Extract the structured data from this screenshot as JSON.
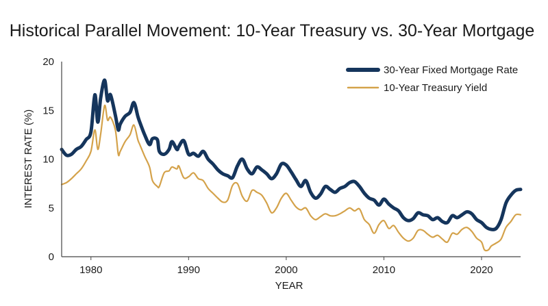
{
  "chart_data": {
    "type": "line",
    "title": "Historical Parallel Movement: 10-Year Treasury vs. 30-Year Mortgage",
    "xlabel": "YEAR",
    "ylabel": "INTEREST RATE (%)",
    "xlim": [
      1977,
      2024
    ],
    "ylim": [
      0,
      20
    ],
    "x_ticks": [
      1980,
      1990,
      2000,
      2010,
      2020
    ],
    "y_ticks": [
      0,
      5,
      10,
      15,
      20
    ],
    "grid": false,
    "legend_position": "top-right",
    "series": [
      {
        "name": "30-Year Fixed Mortgage Rate",
        "color": "#15355c",
        "points": [
          [
            1977,
            11.0
          ],
          [
            1977.5,
            10.4
          ],
          [
            1978,
            10.5
          ],
          [
            1978.5,
            11.0
          ],
          [
            1979,
            11.3
          ],
          [
            1979.5,
            12.0
          ],
          [
            1980,
            12.8
          ],
          [
            1980.4,
            16.6
          ],
          [
            1980.7,
            13.8
          ],
          [
            1981,
            16.3
          ],
          [
            1981.4,
            18.1
          ],
          [
            1981.7,
            16.0
          ],
          [
            1982,
            16.6
          ],
          [
            1982.5,
            14.5
          ],
          [
            1982.8,
            13.0
          ],
          [
            1983,
            13.6
          ],
          [
            1983.5,
            14.4
          ],
          [
            1984,
            14.8
          ],
          [
            1984.4,
            15.8
          ],
          [
            1984.8,
            14.4
          ],
          [
            1985,
            13.8
          ],
          [
            1985.5,
            12.5
          ],
          [
            1986,
            11.5
          ],
          [
            1986.3,
            12.1
          ],
          [
            1986.8,
            12.0
          ],
          [
            1987,
            10.8
          ],
          [
            1987.5,
            10.5
          ],
          [
            1988,
            11.0
          ],
          [
            1988.3,
            11.8
          ],
          [
            1988.8,
            11.0
          ],
          [
            1989,
            11.3
          ],
          [
            1989.5,
            11.9
          ],
          [
            1990,
            10.5
          ],
          [
            1990.5,
            10.6
          ],
          [
            1991,
            10.3
          ],
          [
            1991.5,
            10.8
          ],
          [
            1992,
            10.0
          ],
          [
            1992.5,
            9.5
          ],
          [
            1993,
            8.9
          ],
          [
            1993.5,
            8.5
          ],
          [
            1994,
            8.3
          ],
          [
            1994.5,
            8.1
          ],
          [
            1995,
            9.3
          ],
          [
            1995.5,
            10.0
          ],
          [
            1996,
            9.0
          ],
          [
            1996.5,
            8.5
          ],
          [
            1997,
            9.2
          ],
          [
            1997.5,
            8.9
          ],
          [
            1998,
            8.5
          ],
          [
            1998.5,
            8.0
          ],
          [
            1999,
            8.5
          ],
          [
            1999.5,
            9.5
          ],
          [
            2000,
            9.4
          ],
          [
            2000.5,
            8.7
          ],
          [
            2001,
            7.9
          ],
          [
            2001.5,
            7.2
          ],
          [
            2002,
            7.8
          ],
          [
            2002.5,
            6.6
          ],
          [
            2003,
            6.0
          ],
          [
            2003.5,
            6.4
          ],
          [
            2004,
            7.2
          ],
          [
            2004.5,
            6.9
          ],
          [
            2005,
            6.6
          ],
          [
            2005.5,
            7.0
          ],
          [
            2006,
            7.2
          ],
          [
            2006.5,
            7.6
          ],
          [
            2007,
            7.7
          ],
          [
            2007.5,
            7.2
          ],
          [
            2008,
            6.5
          ],
          [
            2008.5,
            6.0
          ],
          [
            2009,
            5.8
          ],
          [
            2009.5,
            5.3
          ],
          [
            2010,
            5.9
          ],
          [
            2010.5,
            5.4
          ],
          [
            2011,
            5.0
          ],
          [
            2011.5,
            4.7
          ],
          [
            2012,
            4.0
          ],
          [
            2012.5,
            3.7
          ],
          [
            2013,
            3.9
          ],
          [
            2013.5,
            4.5
          ],
          [
            2014,
            4.3
          ],
          [
            2014.5,
            4.2
          ],
          [
            2015,
            3.8
          ],
          [
            2015.5,
            4.0
          ],
          [
            2016,
            3.6
          ],
          [
            2016.5,
            3.5
          ],
          [
            2017,
            4.2
          ],
          [
            2017.5,
            4.0
          ],
          [
            2018,
            4.3
          ],
          [
            2018.5,
            4.6
          ],
          [
            2019,
            4.4
          ],
          [
            2019.5,
            3.8
          ],
          [
            2020,
            3.5
          ],
          [
            2020.5,
            3.0
          ],
          [
            2021,
            2.8
          ],
          [
            2021.5,
            2.9
          ],
          [
            2022,
            3.8
          ],
          [
            2022.5,
            5.5
          ],
          [
            2023,
            6.3
          ],
          [
            2023.5,
            6.8
          ],
          [
            2024,
            6.9
          ]
        ]
      },
      {
        "name": "10-Year Treasury Yield",
        "color": "#d4a24a",
        "points": [
          [
            1977,
            7.4
          ],
          [
            1977.5,
            7.6
          ],
          [
            1978,
            8.0
          ],
          [
            1978.5,
            8.5
          ],
          [
            1979,
            9.0
          ],
          [
            1979.5,
            9.8
          ],
          [
            1980,
            10.8
          ],
          [
            1980.4,
            13.0
          ],
          [
            1980.7,
            11.0
          ],
          [
            1981,
            12.6
          ],
          [
            1981.4,
            15.5
          ],
          [
            1981.7,
            14.0
          ],
          [
            1982,
            14.3
          ],
          [
            1982.5,
            13.0
          ],
          [
            1982.8,
            10.5
          ],
          [
            1983,
            10.8
          ],
          [
            1983.5,
            11.8
          ],
          [
            1984,
            12.5
          ],
          [
            1984.4,
            13.5
          ],
          [
            1984.8,
            12.0
          ],
          [
            1985,
            11.5
          ],
          [
            1985.5,
            10.3
          ],
          [
            1986,
            9.2
          ],
          [
            1986.3,
            7.8
          ],
          [
            1986.8,
            7.2
          ],
          [
            1987,
            7.2
          ],
          [
            1987.5,
            8.6
          ],
          [
            1988,
            8.8
          ],
          [
            1988.3,
            9.2
          ],
          [
            1988.8,
            9.0
          ],
          [
            1989,
            9.3
          ],
          [
            1989.5,
            8.1
          ],
          [
            1990,
            8.2
          ],
          [
            1990.5,
            8.6
          ],
          [
            1991,
            8.0
          ],
          [
            1991.5,
            7.8
          ],
          [
            1992,
            7.0
          ],
          [
            1992.5,
            6.5
          ],
          [
            1993,
            6.0
          ],
          [
            1993.5,
            5.6
          ],
          [
            1994,
            5.8
          ],
          [
            1994.5,
            7.3
          ],
          [
            1995,
            7.5
          ],
          [
            1995.5,
            6.2
          ],
          [
            1996,
            5.7
          ],
          [
            1996.5,
            6.8
          ],
          [
            1997,
            6.6
          ],
          [
            1997.5,
            6.3
          ],
          [
            1998,
            5.5
          ],
          [
            1998.5,
            4.5
          ],
          [
            1999,
            5.0
          ],
          [
            1999.5,
            6.0
          ],
          [
            2000,
            6.5
          ],
          [
            2000.5,
            5.8
          ],
          [
            2001,
            5.1
          ],
          [
            2001.5,
            4.8
          ],
          [
            2002,
            5.0
          ],
          [
            2002.5,
            4.2
          ],
          [
            2003,
            3.8
          ],
          [
            2003.5,
            4.1
          ],
          [
            2004,
            4.4
          ],
          [
            2004.5,
            4.2
          ],
          [
            2005,
            4.2
          ],
          [
            2005.5,
            4.4
          ],
          [
            2006,
            4.7
          ],
          [
            2006.5,
            5.0
          ],
          [
            2007,
            4.7
          ],
          [
            2007.5,
            4.9
          ],
          [
            2008,
            3.8
          ],
          [
            2008.5,
            3.3
          ],
          [
            2009,
            2.4
          ],
          [
            2009.5,
            3.3
          ],
          [
            2010,
            3.7
          ],
          [
            2010.5,
            2.9
          ],
          [
            2011,
            3.2
          ],
          [
            2011.5,
            2.5
          ],
          [
            2012,
            1.9
          ],
          [
            2012.5,
            1.6
          ],
          [
            2013,
            1.9
          ],
          [
            2013.5,
            2.7
          ],
          [
            2014,
            2.7
          ],
          [
            2014.5,
            2.3
          ],
          [
            2015,
            2.0
          ],
          [
            2015.5,
            2.2
          ],
          [
            2016,
            1.8
          ],
          [
            2016.5,
            1.5
          ],
          [
            2017,
            2.4
          ],
          [
            2017.5,
            2.3
          ],
          [
            2018,
            2.8
          ],
          [
            2018.5,
            3.0
          ],
          [
            2019,
            2.6
          ],
          [
            2019.5,
            1.9
          ],
          [
            2020,
            1.5
          ],
          [
            2020.3,
            0.7
          ],
          [
            2020.7,
            0.7
          ],
          [
            2021,
            1.1
          ],
          [
            2021.5,
            1.4
          ],
          [
            2022,
            1.8
          ],
          [
            2022.5,
            3.0
          ],
          [
            2023,
            3.6
          ],
          [
            2023.5,
            4.3
          ],
          [
            2024,
            4.3
          ]
        ]
      }
    ]
  }
}
